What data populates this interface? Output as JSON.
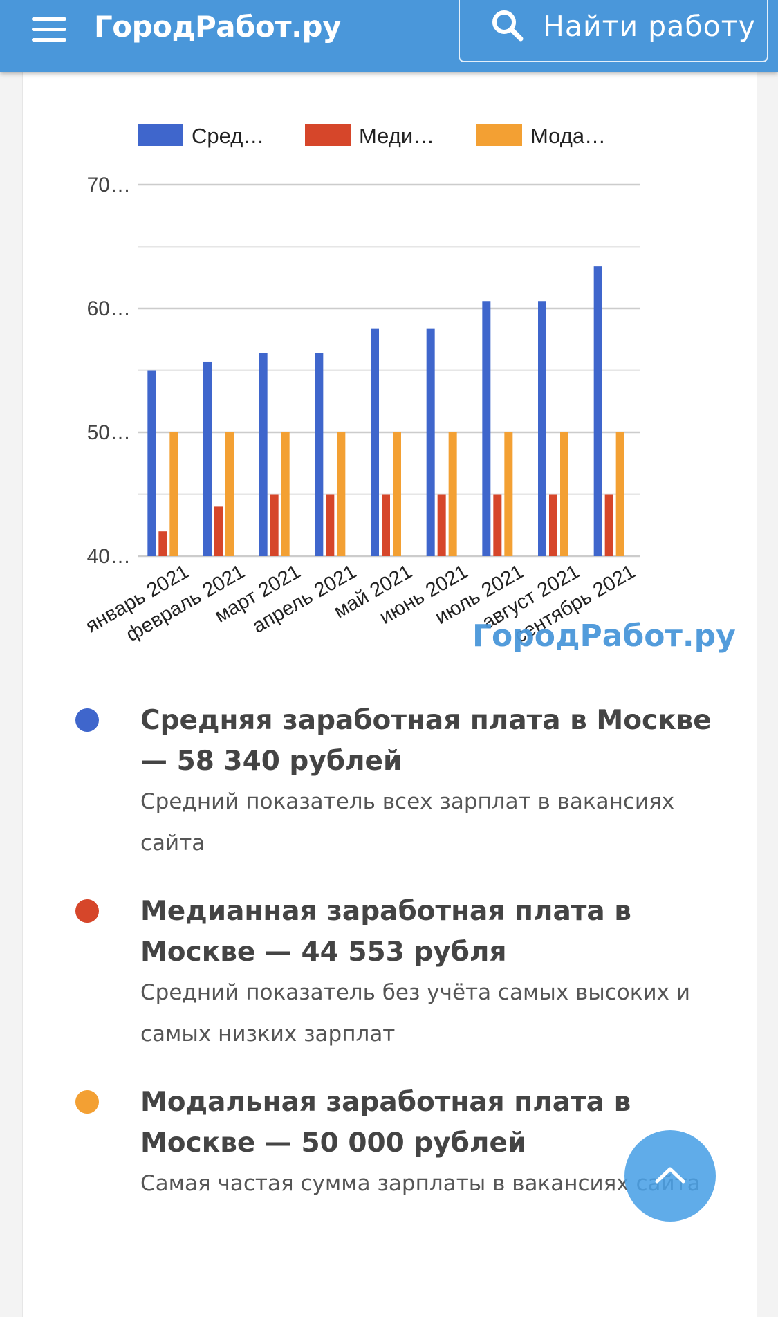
{
  "header": {
    "logo": "ГородРабот.ру",
    "search_label": "Найти работу"
  },
  "colors": {
    "header": "#4a97da",
    "average": "#3f66cc",
    "median": "#d6462a",
    "mode": "#f3a033"
  },
  "chart_data": {
    "type": "bar",
    "legend": [
      "Сред…",
      "Меди…",
      "Мода…"
    ],
    "legend_position": "top",
    "categories": [
      "январь 2021",
      "февраль 2021",
      "март 2021",
      "апрель 2021",
      "май 2021",
      "июнь 2021",
      "июль 2021",
      "август 2021",
      "сентябрь 2021"
    ],
    "yticks": [
      "40…",
      "50…",
      "60…",
      "70…"
    ],
    "ylim": [
      40000,
      70000
    ],
    "grid": true,
    "series": [
      {
        "name": "Сред…",
        "values": [
          55000,
          55700,
          56400,
          56400,
          58400,
          58400,
          60600,
          60600,
          63400
        ]
      },
      {
        "name": "Меди…",
        "values": [
          42000,
          44000,
          45000,
          45000,
          45000,
          45000,
          45000,
          45000,
          45000
        ]
      },
      {
        "name": "Мода…",
        "values": [
          50000,
          50000,
          50000,
          50000,
          50000,
          50000,
          50000,
          50000,
          50000
        ]
      }
    ],
    "watermark": "ГородРабот.ру"
  },
  "stats": [
    {
      "title": "Средняя заработная плата в Москве — 58 340 рублей",
      "description": "Средний показатель всех зарплат в вакансиях сайта"
    },
    {
      "title": "Медианная заработная плата в Москве — 44 553 рубля",
      "description": "Средний показатель без учёта самых высоких и самых низких зарплат"
    },
    {
      "title": "Модальная заработная плата в Москве — 50 000 рублей",
      "description": "Самая частая сумма зарплаты в вакансиях сайта"
    }
  ]
}
